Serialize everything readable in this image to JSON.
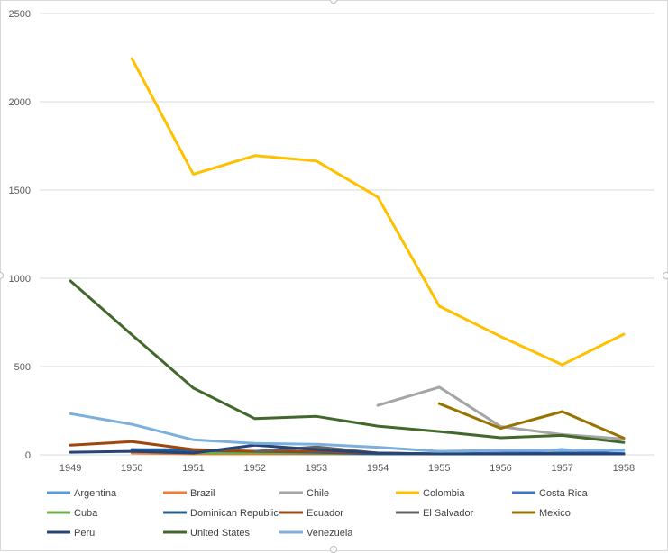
{
  "chart_data": {
    "type": "line",
    "title": "",
    "xlabel": "",
    "ylabel": "",
    "categories": [
      "1949",
      "1950",
      "1951",
      "1952",
      "1953",
      "1954",
      "1955",
      "1956",
      "1957",
      "1958"
    ],
    "ylim": [
      0,
      2500
    ],
    "yticks": [
      0,
      500,
      1000,
      1500,
      2000,
      2500
    ],
    "grid": true,
    "legend_position": "bottom",
    "series": [
      {
        "name": "Argentina",
        "color": "#5b9bd5",
        "values": [
          null,
          30,
          30,
          12,
          10,
          8,
          5,
          5,
          8,
          10
        ]
      },
      {
        "name": "Brazil",
        "color": "#ed7d31",
        "values": [
          null,
          10,
          5,
          5,
          5,
          5,
          5,
          5,
          5,
          5
        ]
      },
      {
        "name": "Chile",
        "color": "#a5a5a5",
        "values": [
          null,
          null,
          null,
          null,
          null,
          280,
          383,
          160,
          115,
          90
        ]
      },
      {
        "name": "Colombia",
        "color": "#ffc000",
        "values": [
          null,
          2245,
          1590,
          1695,
          1665,
          1460,
          842,
          670,
          510,
          683
        ]
      },
      {
        "name": "Costa Rica",
        "color": "#4472c4",
        "values": [
          null,
          30,
          20,
          10,
          8,
          5,
          5,
          10,
          30,
          5
        ]
      },
      {
        "name": "Cuba",
        "color": "#70ad47",
        "values": [
          null,
          20,
          10,
          10,
          10,
          5,
          5,
          5,
          5,
          5
        ]
      },
      {
        "name": "Dominican Republic",
        "color": "#255e91",
        "values": [
          null,
          25,
          25,
          20,
          15,
          5,
          5,
          5,
          10,
          5
        ]
      },
      {
        "name": "Ecuador",
        "color": "#9e480e",
        "values": [
          55,
          75,
          30,
          20,
          20,
          10,
          5,
          5,
          5,
          5
        ]
      },
      {
        "name": "El Salvador",
        "color": "#636363",
        "values": [
          null,
          null,
          null,
          20,
          45,
          10,
          5,
          5,
          5,
          5
        ]
      },
      {
        "name": "Mexico",
        "color": "#997300",
        "values": [
          null,
          null,
          null,
          null,
          null,
          null,
          290,
          150,
          245,
          95
        ]
      },
      {
        "name": "Peru",
        "color": "#264478",
        "values": [
          15,
          20,
          10,
          55,
          30,
          10,
          5,
          5,
          5,
          5
        ]
      },
      {
        "name": "United States",
        "color": "#43682b",
        "values": [
          985,
          680,
          378,
          205,
          218,
          163,
          132,
          97,
          110,
          70
        ]
      },
      {
        "name": "Venezuela",
        "color": "#7cafdd",
        "values": [
          233,
          173,
          85,
          65,
          60,
          43,
          20,
          25,
          25,
          28
        ]
      }
    ]
  }
}
